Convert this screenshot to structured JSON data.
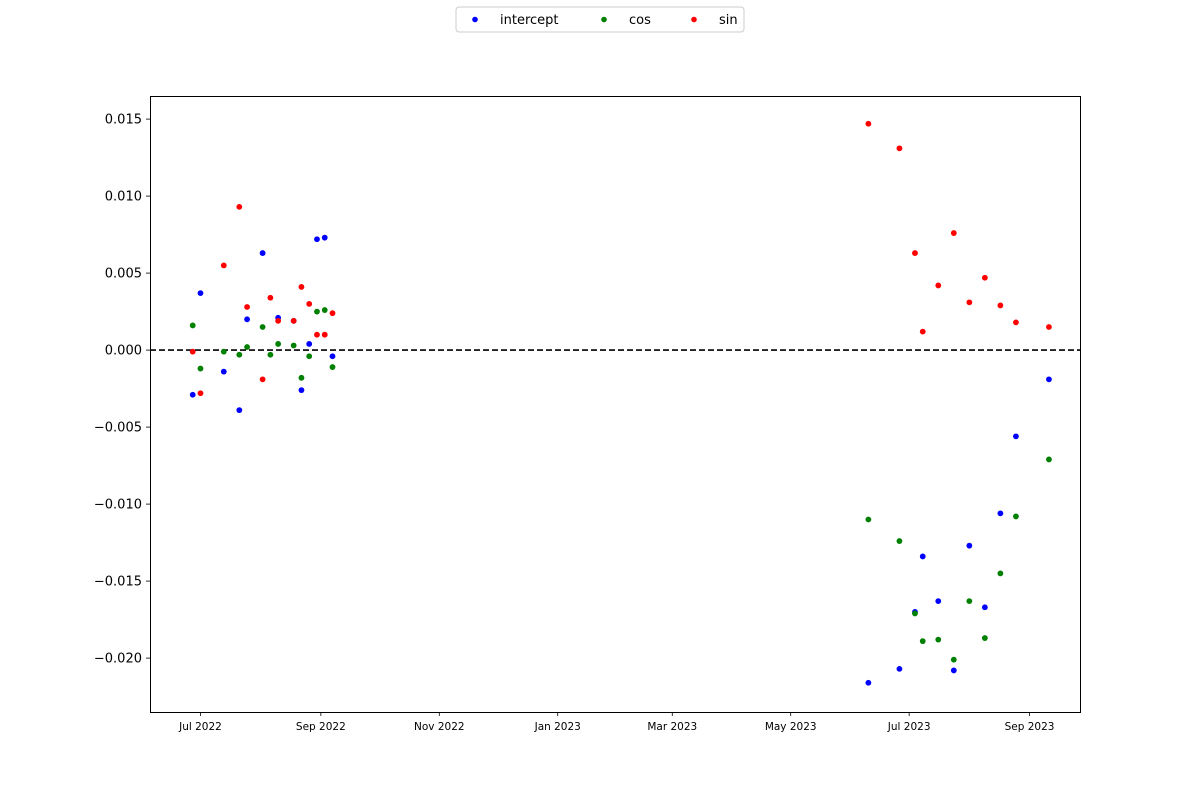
{
  "chart_data": {
    "type": "scatter",
    "title": "",
    "xlabel": "",
    "ylabel": "",
    "xlim": [
      "2022-06-05",
      "2023-09-27"
    ],
    "ylim": [
      -0.0235,
      0.0165
    ],
    "grid": false,
    "reference_line": {
      "y": 0,
      "style": "dashed",
      "color": "#000000"
    },
    "legend": {
      "placement": "top-center"
    },
    "x_ticks": [
      {
        "date": "2022-07-01",
        "label": "Jul 2022"
      },
      {
        "date": "2022-09-01",
        "label": "Sep 2022"
      },
      {
        "date": "2022-11-01",
        "label": "Nov 2022"
      },
      {
        "date": "2023-01-01",
        "label": "Jan 2023"
      },
      {
        "date": "2023-03-01",
        "label": "Mar 2023"
      },
      {
        "date": "2023-05-01",
        "label": "May 2023"
      },
      {
        "date": "2023-07-01",
        "label": "Jul 2023"
      },
      {
        "date": "2023-09-01",
        "label": "Sep 2023"
      }
    ],
    "y_ticks": [
      {
        "value": 0.015,
        "label": "0.015"
      },
      {
        "value": 0.01,
        "label": "0.010"
      },
      {
        "value": 0.005,
        "label": "0.005"
      },
      {
        "value": 0.0,
        "label": "0.000"
      },
      {
        "value": -0.005,
        "label": "−0.005"
      },
      {
        "value": -0.01,
        "label": "−0.010"
      },
      {
        "value": -0.015,
        "label": "−0.015"
      },
      {
        "value": -0.02,
        "label": "−0.020"
      }
    ],
    "series": [
      {
        "name": "intercept",
        "color": "#0000ff",
        "points": [
          {
            "x": "2022-06-27",
            "y": -0.0029
          },
          {
            "x": "2022-07-01",
            "y": 0.0037
          },
          {
            "x": "2022-07-13",
            "y": -0.0014
          },
          {
            "x": "2022-07-21",
            "y": -0.0039
          },
          {
            "x": "2022-07-25",
            "y": 0.002
          },
          {
            "x": "2022-08-02",
            "y": 0.0063
          },
          {
            "x": "2022-08-10",
            "y": 0.0021
          },
          {
            "x": "2022-08-18",
            "y": 0.0019
          },
          {
            "x": "2022-08-22",
            "y": -0.0026
          },
          {
            "x": "2022-08-26",
            "y": 0.0004
          },
          {
            "x": "2022-08-30",
            "y": 0.0072
          },
          {
            "x": "2022-09-03",
            "y": 0.0073
          },
          {
            "x": "2022-09-07",
            "y": -0.0004
          },
          {
            "x": "2023-06-10",
            "y": -0.0216
          },
          {
            "x": "2023-06-26",
            "y": -0.0207
          },
          {
            "x": "2023-07-04",
            "y": -0.017
          },
          {
            "x": "2023-07-08",
            "y": -0.0134
          },
          {
            "x": "2023-07-16",
            "y": -0.0163
          },
          {
            "x": "2023-07-24",
            "y": -0.0208
          },
          {
            "x": "2023-08-01",
            "y": -0.0127
          },
          {
            "x": "2023-08-09",
            "y": -0.0167
          },
          {
            "x": "2023-08-17",
            "y": -0.0106
          },
          {
            "x": "2023-08-25",
            "y": -0.0056
          },
          {
            "x": "2023-09-11",
            "y": -0.0019
          }
        ]
      },
      {
        "name": "cos",
        "color": "#008000",
        "points": [
          {
            "x": "2022-06-27",
            "y": 0.0016
          },
          {
            "x": "2022-07-01",
            "y": -0.0012
          },
          {
            "x": "2022-07-13",
            "y": -0.0001
          },
          {
            "x": "2022-07-21",
            "y": -0.0003
          },
          {
            "x": "2022-07-25",
            "y": 0.0002
          },
          {
            "x": "2022-08-02",
            "y": 0.0015
          },
          {
            "x": "2022-08-06",
            "y": -0.0003
          },
          {
            "x": "2022-08-10",
            "y": 0.0004
          },
          {
            "x": "2022-08-18",
            "y": 0.0003
          },
          {
            "x": "2022-08-22",
            "y": -0.0018
          },
          {
            "x": "2022-08-26",
            "y": -0.0004
          },
          {
            "x": "2022-08-30",
            "y": 0.0025
          },
          {
            "x": "2022-09-03",
            "y": 0.0026
          },
          {
            "x": "2022-09-07",
            "y": -0.0011
          },
          {
            "x": "2023-06-10",
            "y": -0.011
          },
          {
            "x": "2023-06-26",
            "y": -0.0124
          },
          {
            "x": "2023-07-04",
            "y": -0.0171
          },
          {
            "x": "2023-07-08",
            "y": -0.0189
          },
          {
            "x": "2023-07-16",
            "y": -0.0188
          },
          {
            "x": "2023-07-24",
            "y": -0.0201
          },
          {
            "x": "2023-08-01",
            "y": -0.0163
          },
          {
            "x": "2023-08-09",
            "y": -0.0187
          },
          {
            "x": "2023-08-17",
            "y": -0.0145
          },
          {
            "x": "2023-08-25",
            "y": -0.0108
          },
          {
            "x": "2023-09-11",
            "y": -0.0071
          }
        ]
      },
      {
        "name": "sin",
        "color": "#ff0000",
        "points": [
          {
            "x": "2022-06-27",
            "y": -0.0001
          },
          {
            "x": "2022-07-01",
            "y": -0.0028
          },
          {
            "x": "2022-07-13",
            "y": 0.0055
          },
          {
            "x": "2022-07-21",
            "y": 0.0093
          },
          {
            "x": "2022-07-25",
            "y": 0.0028
          },
          {
            "x": "2022-08-02",
            "y": -0.0019
          },
          {
            "x": "2022-08-06",
            "y": 0.0034
          },
          {
            "x": "2022-08-10",
            "y": 0.0019
          },
          {
            "x": "2022-08-18",
            "y": 0.0019
          },
          {
            "x": "2022-08-22",
            "y": 0.0041
          },
          {
            "x": "2022-08-26",
            "y": 0.003
          },
          {
            "x": "2022-08-30",
            "y": 0.001
          },
          {
            "x": "2022-09-03",
            "y": 0.001
          },
          {
            "x": "2022-09-07",
            "y": 0.0024
          },
          {
            "x": "2023-06-10",
            "y": 0.0147
          },
          {
            "x": "2023-06-26",
            "y": 0.0131
          },
          {
            "x": "2023-07-04",
            "y": 0.0063
          },
          {
            "x": "2023-07-08",
            "y": 0.0012
          },
          {
            "x": "2023-07-16",
            "y": 0.0042
          },
          {
            "x": "2023-07-24",
            "y": 0.0076
          },
          {
            "x": "2023-08-01",
            "y": 0.0031
          },
          {
            "x": "2023-08-09",
            "y": 0.0047
          },
          {
            "x": "2023-08-17",
            "y": 0.0029
          },
          {
            "x": "2023-08-25",
            "y": 0.0018
          },
          {
            "x": "2023-09-11",
            "y": 0.0015
          }
        ]
      }
    ]
  }
}
